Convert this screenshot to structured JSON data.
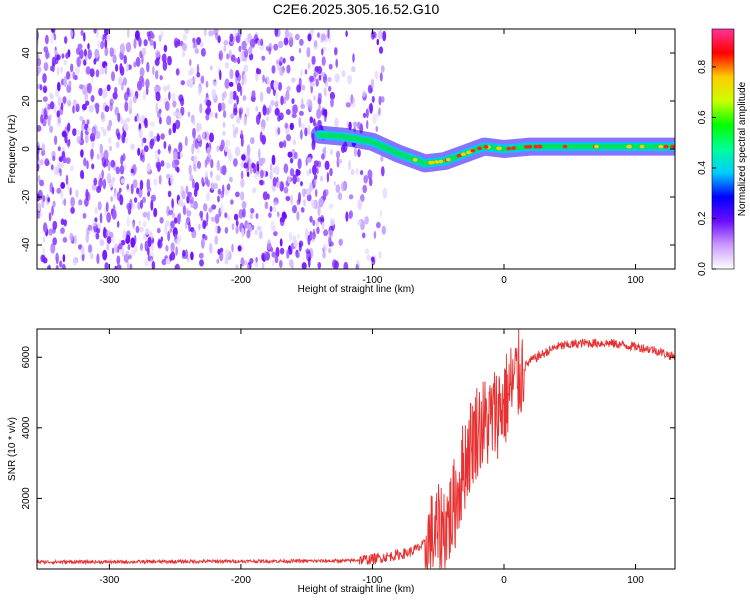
{
  "title": "C2E6.2025.305.16.52.G10",
  "colors": {
    "snr_line": "#e83030",
    "colormap": [
      "#ffffff",
      "#d8c8ff",
      "#a040ff",
      "#6a0dff",
      "#0000ff",
      "#00ffff",
      "#00ff00",
      "#ffff00",
      "#ff0000",
      "#ff3399"
    ]
  },
  "chart_data": [
    {
      "type": "heatmap",
      "name": "spectrogram",
      "xlabel": "Height of straight line (km)",
      "ylabel": "Frequency (Hz)",
      "xlim": [
        -355,
        130
      ],
      "ylim": [
        -50,
        50
      ],
      "xticks": [
        -300,
        -200,
        -100,
        0,
        100
      ],
      "yticks": [
        -40,
        -20,
        0,
        20,
        40
      ],
      "tone_track": {
        "x": [
          -140,
          -120,
          -100,
          -80,
          -60,
          -45,
          -30,
          -15,
          0,
          20,
          60,
          100,
          130
        ],
        "freq": [
          6,
          5,
          3,
          -2,
          -6,
          -5,
          -2,
          1,
          0,
          1,
          1,
          1,
          1
        ]
      },
      "noise_region_xmax": -100,
      "colorbar": {
        "label": "Normalized spectral amplitude",
        "range": [
          0,
          0.95
        ],
        "ticks": [
          0.0,
          0.2,
          0.4,
          0.6,
          0.8
        ]
      }
    },
    {
      "type": "line",
      "name": "snr",
      "xlabel": "Height of straight line (km)",
      "ylabel": "SNR (10 * v/v)",
      "xlim": [
        -355,
        130
      ],
      "ylim": [
        0,
        6800
      ],
      "xticks": [
        -300,
        -200,
        -100,
        0,
        100
      ],
      "yticks": [
        2000,
        4000,
        6000
      ],
      "series": [
        {
          "name": "SNR",
          "x": [
            -355,
            -300,
            -200,
            -120,
            -100,
            -80,
            -70,
            -60,
            -50,
            -40,
            -35,
            -30,
            -25,
            -20,
            -15,
            -10,
            -5,
            0,
            5,
            10,
            15,
            20,
            30,
            40,
            60,
            80,
            100,
            115,
            130
          ],
          "y": [
            200,
            200,
            220,
            230,
            280,
            400,
            500,
            700,
            1000,
            1500,
            2200,
            3000,
            3600,
            4000,
            4100,
            4200,
            4500,
            4700,
            5100,
            5400,
            5700,
            5900,
            6100,
            6300,
            6400,
            6400,
            6300,
            6200,
            6000
          ]
        }
      ]
    }
  ]
}
